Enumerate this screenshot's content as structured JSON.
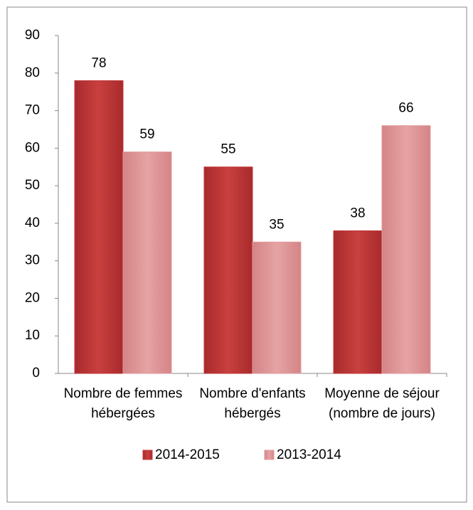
{
  "chart_data": {
    "type": "bar",
    "categories": [
      "Nombre de femmes hébergées",
      "Nombre d'enfants hébergés",
      "Moyenne de séjour (nombre de jours)"
    ],
    "series": [
      {
        "name": "2014-2015",
        "color": "#c0393b",
        "values": [
          78,
          55,
          38
        ]
      },
      {
        "name": "2013-2014",
        "color": "#e0999b",
        "values": [
          59,
          35,
          66
        ]
      }
    ],
    "ylim": [
      0,
      90
    ],
    "yticks": [
      0,
      10,
      20,
      30,
      40,
      50,
      60,
      70,
      80,
      90
    ],
    "legend": "bottom"
  }
}
